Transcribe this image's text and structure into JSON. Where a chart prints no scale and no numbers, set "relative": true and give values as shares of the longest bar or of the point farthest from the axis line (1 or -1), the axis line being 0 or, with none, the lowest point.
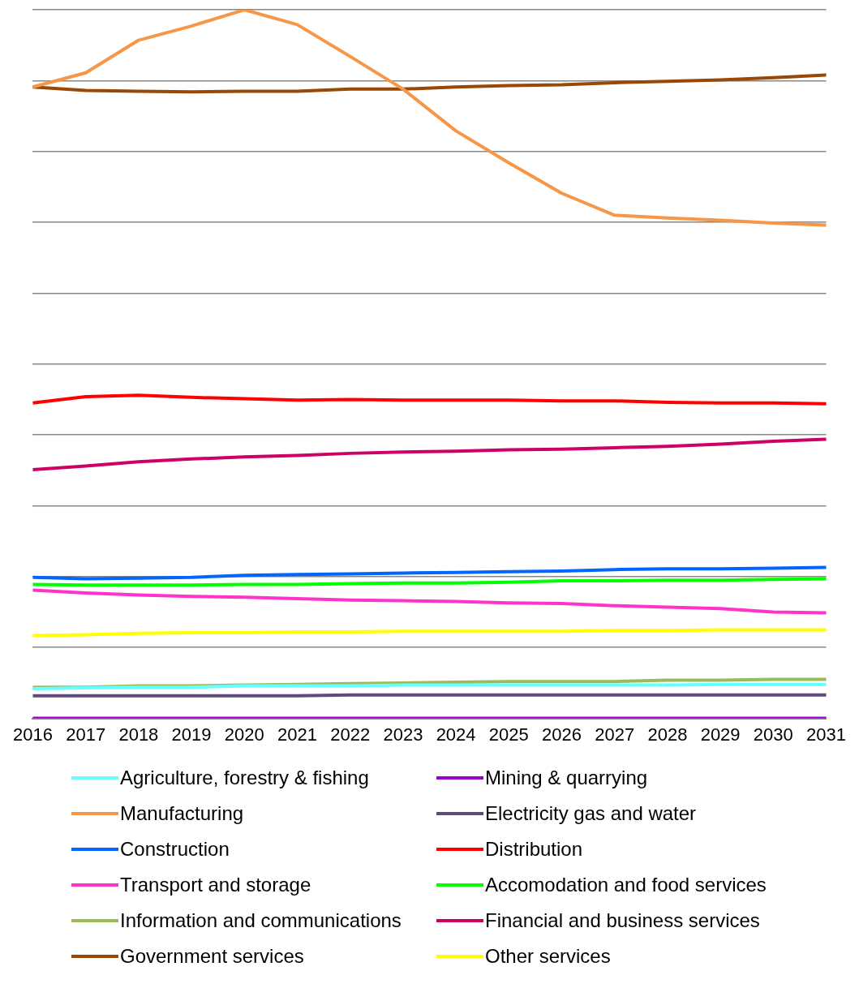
{
  "chart_data": {
    "type": "line",
    "relative": true,
    "grid": "y",
    "legend": "bottom",
    "marker": "none",
    "line_style": "solid",
    "categories": [
      "2016",
      "2017",
      "2018",
      "2019",
      "2020",
      "2021",
      "2022",
      "2023",
      "2024",
      "2025",
      "2026",
      "2027",
      "2028",
      "2029",
      "2030",
      "2031"
    ],
    "series": [
      {
        "name": "Agriculture, forestry & fishing",
        "color": "#66ffff",
        "values": [
          0.042,
          0.043,
          0.044,
          0.044,
          0.046,
          0.046,
          0.046,
          0.047,
          0.047,
          0.047,
          0.047,
          0.047,
          0.047,
          0.048,
          0.048,
          0.048
        ]
      },
      {
        "name": "Mining & quarrying",
        "color": "#9900cc",
        "values": [
          0,
          0,
          0,
          0,
          0,
          0,
          0,
          0,
          0,
          0,
          0,
          0,
          0,
          0,
          0,
          0
        ]
      },
      {
        "name": "Manufacturing",
        "color": "#f79646",
        "values": [
          0.891,
          0.911,
          0.957,
          0.977,
          1,
          0.979,
          0.934,
          0.888,
          0.829,
          0.784,
          0.741,
          0.71,
          0.706,
          0.703,
          0.699,
          0.696
        ]
      },
      {
        "name": "Electricity gas and water",
        "color": "#604a7b",
        "values": [
          0.032,
          0.032,
          0.032,
          0.032,
          0.032,
          0.032,
          0.033,
          0.033,
          0.033,
          0.033,
          0.033,
          0.033,
          0.033,
          0.033,
          0.033,
          0.033
        ]
      },
      {
        "name": "Construction",
        "color": "#0066ff",
        "values": [
          0.199,
          0.197,
          0.198,
          0.199,
          0.202,
          0.203,
          0.204,
          0.205,
          0.206,
          0.207,
          0.208,
          0.21,
          0.211,
          0.211,
          0.212,
          0.213
        ]
      },
      {
        "name": "Distribution",
        "color": "#ff0000",
        "values": [
          0.445,
          0.454,
          0.456,
          0.453,
          0.451,
          0.449,
          0.45,
          0.449,
          0.449,
          0.449,
          0.448,
          0.448,
          0.446,
          0.445,
          0.445,
          0.444
        ]
      },
      {
        "name": "Transport and storage",
        "color": "#ff33cc",
        "values": [
          0.181,
          0.177,
          0.174,
          0.172,
          0.171,
          0.169,
          0.167,
          0.166,
          0.165,
          0.163,
          0.162,
          0.159,
          0.157,
          0.155,
          0.15,
          0.149
        ]
      },
      {
        "name": "Accomodation and food services",
        "color": "#00ff00",
        "values": [
          0.189,
          0.188,
          0.188,
          0.188,
          0.189,
          0.189,
          0.19,
          0.191,
          0.191,
          0.192,
          0.194,
          0.194,
          0.195,
          0.195,
          0.196,
          0.197
        ]
      },
      {
        "name": "Information and communications",
        "color": "#9bbb59",
        "values": [
          0.044,
          0.044,
          0.046,
          0.046,
          0.047,
          0.048,
          0.049,
          0.05,
          0.051,
          0.052,
          0.052,
          0.052,
          0.054,
          0.054,
          0.055,
          0.055
        ]
      },
      {
        "name": "Financial and business services",
        "color": "#cc0066",
        "values": [
          0.351,
          0.356,
          0.362,
          0.366,
          0.369,
          0.371,
          0.374,
          0.376,
          0.377,
          0.379,
          0.38,
          0.382,
          0.384,
          0.387,
          0.391,
          0.394
        ]
      },
      {
        "name": "Government services",
        "color": "#984807",
        "values": [
          0.891,
          0.886,
          0.885,
          0.884,
          0.885,
          0.885,
          0.888,
          0.888,
          0.891,
          0.893,
          0.894,
          0.897,
          0.899,
          0.901,
          0.904,
          0.908
        ]
      },
      {
        "name": "Other services",
        "color": "#ffff00",
        "values": [
          0.117,
          0.118,
          0.12,
          0.121,
          0.121,
          0.122,
          0.122,
          0.123,
          0.123,
          0.123,
          0.123,
          0.124,
          0.124,
          0.125,
          0.125,
          0.125
        ]
      }
    ]
  }
}
